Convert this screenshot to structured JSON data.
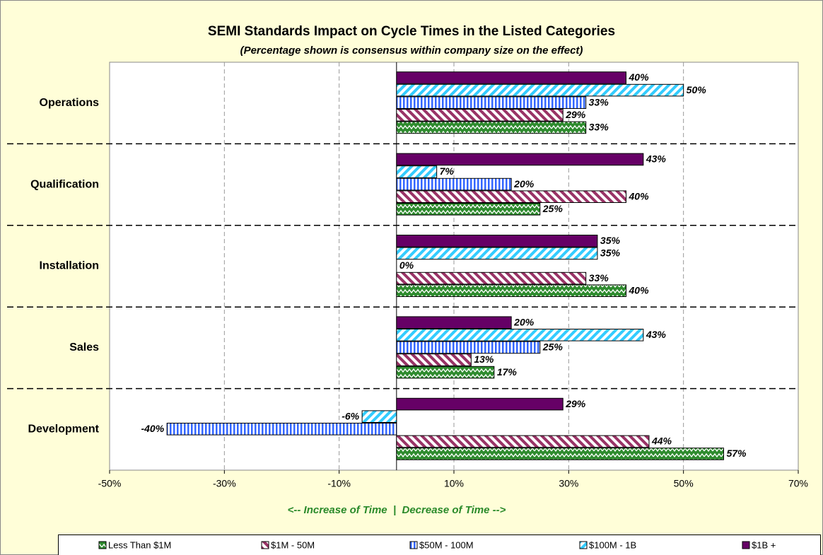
{
  "chart_data": {
    "type": "barh",
    "title": "SEMI Standards Impact on Cycle Times in the Listed Categories",
    "subtitle": "(Percentage shown is consensus within company size on the effect)",
    "x_label": "<-- Increase of Time  |  Decrease of Time -->",
    "categories": [
      "Operations",
      "Qualification",
      "Installation",
      "Sales",
      "Development"
    ],
    "series": [
      {
        "name": "Less Than $1M",
        "color": "#2e8b2e",
        "values": [
          33,
          25,
          40,
          17,
          57
        ],
        "value_labels": [
          "33%",
          "25%",
          "40%",
          "17%",
          "57%"
        ]
      },
      {
        "name": "$1M - 50M",
        "color": "#993366",
        "values": [
          29,
          40,
          33,
          13,
          44
        ],
        "value_labels": [
          "29%",
          "40%",
          "33%",
          "13%",
          "44%"
        ]
      },
      {
        "name": "$50M - 100M",
        "color": "#3366ff",
        "values": [
          33,
          20,
          0,
          25,
          -40
        ],
        "value_labels": [
          "33%",
          "20%",
          "0%",
          "25%",
          "-40%"
        ]
      },
      {
        "name": "$100M - 1B",
        "color": "#33ccff",
        "values": [
          50,
          7,
          35,
          43,
          -6
        ],
        "value_labels": [
          "50%",
          "7%",
          "35%",
          "43%",
          "-6%"
        ]
      },
      {
        "name": "$1B +",
        "color": "#660066",
        "values": [
          40,
          43,
          35,
          20,
          29
        ],
        "value_labels": [
          "40%",
          "43%",
          "35%",
          "20%",
          "29%"
        ]
      }
    ],
    "xlim": [
      -50,
      70
    ],
    "xticks": [
      {
        "value": -50,
        "label": "-50%"
      },
      {
        "value": -30,
        "label": "-30%"
      },
      {
        "value": -10,
        "label": "-10%"
      },
      {
        "value": 10,
        "label": "10%"
      },
      {
        "value": 30,
        "label": "30%"
      },
      {
        "value": 50,
        "label": "50%"
      },
      {
        "value": 70,
        "label": "70%"
      }
    ],
    "grid": true,
    "legend": "bottom"
  }
}
